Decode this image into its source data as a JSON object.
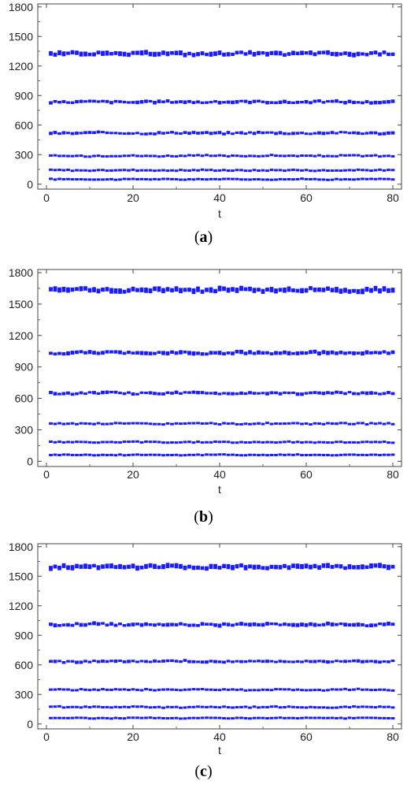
{
  "chart_data": [
    {
      "type": "scatter",
      "panel_label": "a",
      "xlabel": "t",
      "ylabel": "",
      "title": "",
      "xlim": [
        -2,
        82
      ],
      "ylim": [
        -50,
        1830
      ],
      "xticks": [
        0,
        20,
        40,
        60,
        80
      ],
      "yticks": [
        0,
        300,
        600,
        900,
        1200,
        1500,
        1800
      ],
      "x_range": [
        1,
        80
      ],
      "grid": false,
      "series": [
        {
          "level": 55,
          "spread": 10,
          "values_note": ""
        },
        {
          "level": 145,
          "spread": 12
        },
        {
          "level": 290,
          "spread": 14
        },
        {
          "level": 520,
          "spread": 20
        },
        {
          "level": 835,
          "spread": 22
        },
        {
          "level": 1325,
          "spread": 30
        }
      ],
      "color": "#1a1aff"
    },
    {
      "type": "scatter",
      "panel_label": "b",
      "xlabel": "t",
      "ylabel": "",
      "title": "",
      "xlim": [
        -2,
        82
      ],
      "ylim": [
        -50,
        1830
      ],
      "xticks": [
        0,
        20,
        40,
        60,
        80
      ],
      "yticks": [
        0,
        300,
        600,
        900,
        1200,
        1500,
        1800
      ],
      "x_range": [
        1,
        80
      ],
      "grid": false,
      "series": [
        {
          "level": 65,
          "spread": 10
        },
        {
          "level": 185,
          "spread": 12
        },
        {
          "level": 360,
          "spread": 14
        },
        {
          "level": 650,
          "spread": 20
        },
        {
          "level": 1035,
          "spread": 24
        },
        {
          "level": 1635,
          "spread": 32
        }
      ],
      "color": "#1a1aff"
    },
    {
      "type": "scatter",
      "panel_label": "c",
      "xlabel": "t",
      "ylabel": "",
      "title": "",
      "xlim": [
        -2,
        82
      ],
      "ylim": [
        -50,
        1830
      ],
      "xticks": [
        0,
        20,
        40,
        60,
        80
      ],
      "yticks": [
        0,
        300,
        600,
        900,
        1200,
        1500,
        1800
      ],
      "x_range": [
        1,
        80
      ],
      "grid": false,
      "series": [
        {
          "level": 65,
          "spread": 10
        },
        {
          "level": 175,
          "spread": 12
        },
        {
          "level": 350,
          "spread": 14
        },
        {
          "level": 635,
          "spread": 20
        },
        {
          "level": 1010,
          "spread": 24
        },
        {
          "level": 1595,
          "spread": 32
        }
      ],
      "color": "#1a1aff"
    }
  ]
}
